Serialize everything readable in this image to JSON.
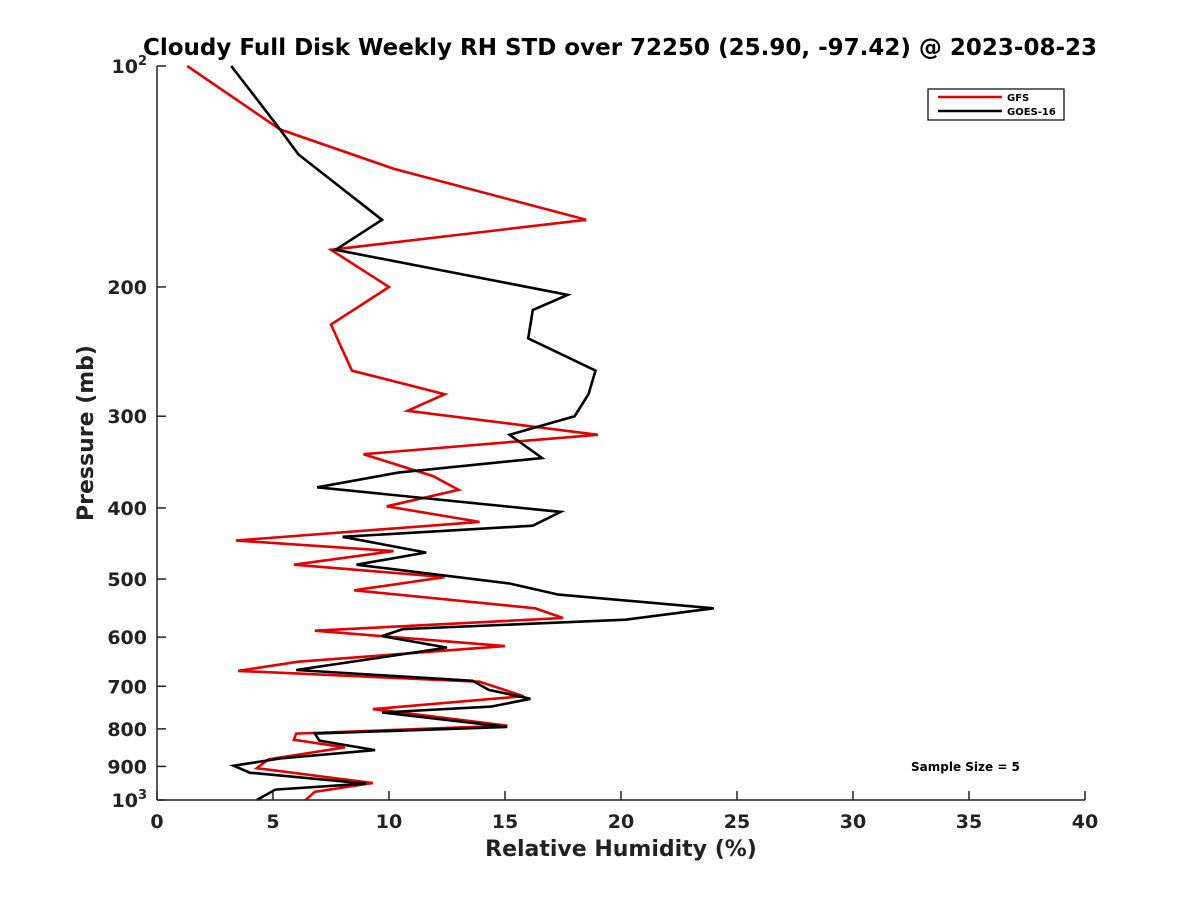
{
  "chart_data": {
    "type": "line",
    "title": "Cloudy Full Disk Weekly RH STD over 72250 (25.90, -97.42) @ 2023-08-23",
    "xlabel": "Relative Humidity (%)",
    "ylabel": "Pressure (mb)",
    "xlim": [
      0,
      40
    ],
    "ylim": [
      100,
      1000
    ],
    "y_scale": "log",
    "y_reversed": true,
    "x_ticks": [
      "0",
      "5",
      "10",
      "15",
      "20",
      "25",
      "30",
      "35",
      "40"
    ],
    "y_ticks": [
      {
        "value": 100,
        "label": "10",
        "sup": "2"
      },
      {
        "value": 200,
        "label": "200",
        "sup": ""
      },
      {
        "value": 300,
        "label": "300",
        "sup": ""
      },
      {
        "value": 400,
        "label": "400",
        "sup": ""
      },
      {
        "value": 500,
        "label": "500",
        "sup": ""
      },
      {
        "value": 600,
        "label": "600",
        "sup": ""
      },
      {
        "value": 700,
        "label": "700",
        "sup": ""
      },
      {
        "value": 800,
        "label": "800",
        "sup": ""
      },
      {
        "value": 900,
        "label": "900",
        "sup": ""
      },
      {
        "value": 1000,
        "label": "10",
        "sup": "3"
      }
    ],
    "grid": false,
    "legend_position": "top-right",
    "annotation": "Sample Size = 5",
    "series": [
      {
        "name": "GFS",
        "color": "#e00000",
        "points": [
          [
            1.3,
            100
          ],
          [
            5.3,
            122
          ],
          [
            10.2,
            138
          ],
          [
            18.5,
            162
          ],
          [
            7.5,
            178
          ],
          [
            10.0,
            200
          ],
          [
            7.5,
            225
          ],
          [
            7.9,
            240
          ],
          [
            8.4,
            260
          ],
          [
            12.4,
            280
          ],
          [
            10.8,
            295
          ],
          [
            19.0,
            318
          ],
          [
            8.9,
            338
          ],
          [
            11.9,
            362
          ],
          [
            13.0,
            378
          ],
          [
            9.9,
            398
          ],
          [
            13.9,
            418
          ],
          [
            3.4,
            443
          ],
          [
            10.2,
            458
          ],
          [
            5.9,
            478
          ],
          [
            12.4,
            497
          ],
          [
            8.5,
            518
          ],
          [
            16.3,
            548
          ],
          [
            17.5,
            565
          ],
          [
            6.8,
            588
          ],
          [
            15.0,
            617
          ],
          [
            6.1,
            648
          ],
          [
            3.5,
            667
          ],
          [
            13.9,
            690
          ],
          [
            15.8,
            722
          ],
          [
            9.3,
            752
          ],
          [
            15.1,
            792
          ],
          [
            6.0,
            812
          ],
          [
            5.9,
            828
          ],
          [
            8.1,
            848
          ],
          [
            4.8,
            880
          ],
          [
            4.3,
            905
          ],
          [
            9.3,
            948
          ],
          [
            6.8,
            975
          ],
          [
            6.4,
            1000
          ]
        ]
      },
      {
        "name": "GOES-16",
        "color": "#000000",
        "points": [
          [
            3.2,
            100
          ],
          [
            4.4,
            112
          ],
          [
            5.3,
            122
          ],
          [
            6.1,
            132
          ],
          [
            9.7,
            162
          ],
          [
            7.7,
            178
          ],
          [
            17.7,
            205
          ],
          [
            16.2,
            215
          ],
          [
            16.0,
            235
          ],
          [
            18.9,
            260
          ],
          [
            18.6,
            280
          ],
          [
            18.0,
            300
          ],
          [
            15.2,
            318
          ],
          [
            16.6,
            342
          ],
          [
            10.4,
            358
          ],
          [
            6.9,
            375
          ],
          [
            17.4,
            405
          ],
          [
            16.2,
            423
          ],
          [
            8.0,
            438
          ],
          [
            11.6,
            460
          ],
          [
            8.6,
            478
          ],
          [
            15.2,
            507
          ],
          [
            17.3,
            525
          ],
          [
            24.0,
            548
          ],
          [
            20.2,
            568
          ],
          [
            10.6,
            585
          ],
          [
            9.7,
            598
          ],
          [
            12.5,
            620
          ],
          [
            6.0,
            665
          ],
          [
            13.6,
            688
          ],
          [
            14.3,
            708
          ],
          [
            16.1,
            728
          ],
          [
            14.4,
            746
          ],
          [
            9.7,
            760
          ],
          [
            15.1,
            795
          ],
          [
            6.8,
            812
          ],
          [
            7.0,
            830
          ],
          [
            9.4,
            855
          ],
          [
            5.3,
            878
          ],
          [
            3.3,
            898
          ],
          [
            4.0,
            918
          ],
          [
            9.0,
            950
          ],
          [
            5.1,
            968
          ],
          [
            4.3,
            1000
          ]
        ]
      }
    ]
  }
}
